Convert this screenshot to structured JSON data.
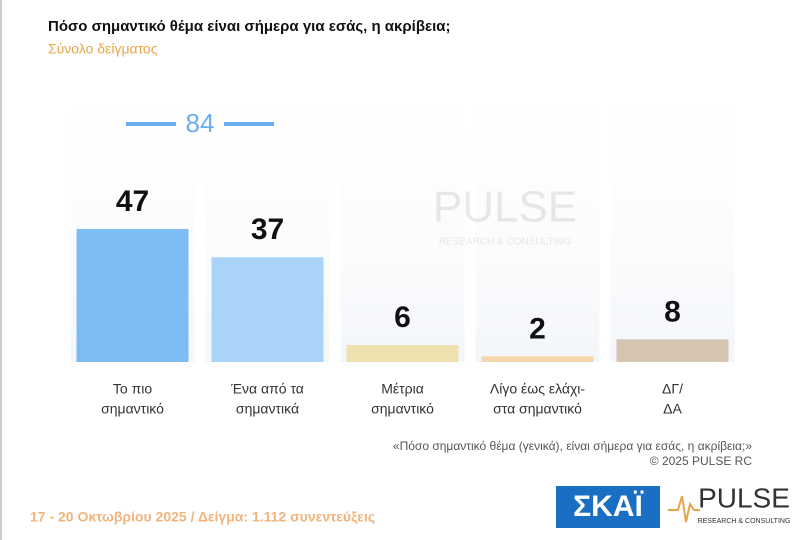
{
  "chart_data": {
    "type": "bar",
    "title": "Πόσο σημαντικό θέμα είναι σήμερα για εσάς, η ακρίβεια;",
    "subtitle": "Σύνολο δείγματος",
    "categories": [
      [
        "Το πιο",
        "σημαντικό"
      ],
      [
        "Ένα από τα",
        "σημαντικά"
      ],
      [
        "Μέτρια",
        "σημαντικό"
      ],
      [
        "Λίγο έως ελάχι-",
        "στα σημαντικό"
      ],
      [
        "ΔΓ/",
        "ΔΑ"
      ]
    ],
    "values": [
      47,
      37,
      6,
      2,
      8
    ],
    "colors": [
      "#7cbcf2",
      "#a9d3f7",
      "#efe0b0",
      "#f6d4ac",
      "#d4c4b0"
    ],
    "ylim": [
      0,
      100
    ],
    "annotation": "84",
    "footnote": "«Πόσο σημαντικό θέμα (γενικά), είναι σήμερα για εσάς, η ακρίβεια;»",
    "copyright": "©  2025  PULSE RC",
    "fieldwork": "17 - 20 Οκτωβρίου 2025  /  Δείγμα:  1.112 συνεντεύξεις",
    "logo_skai": "ΣΚΑΪ",
    "logo_pulse": "PULSE",
    "logo_pulse_sub": "RESEARCH & CONSULTING"
  }
}
